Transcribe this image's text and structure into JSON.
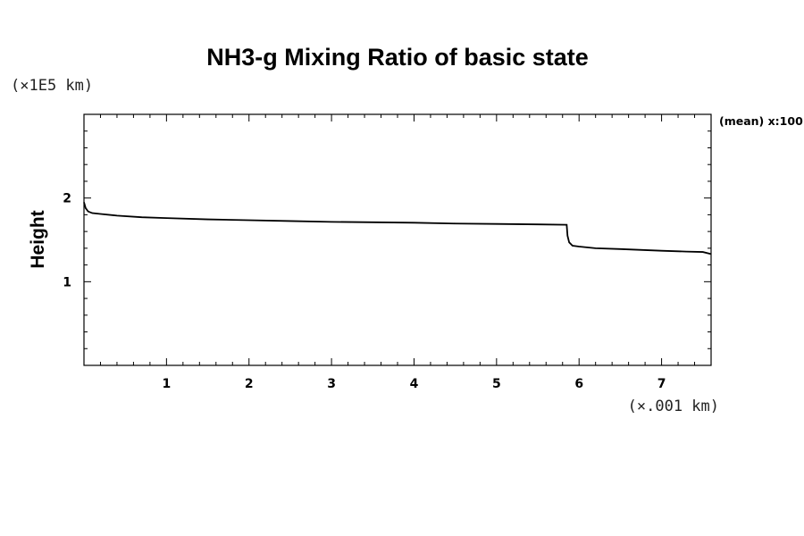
{
  "chart_data": {
    "type": "line",
    "title": "NH3-g Mixing Ratio of basic state",
    "ylabel": "Height",
    "y_unit": "(×1E5 km)",
    "x_unit": "(×.001 km)",
    "annotation": "(mean) x:100",
    "xlim": [
      0,
      7.6
    ],
    "ylim": [
      0,
      3
    ],
    "x_ticks": [
      "1",
      "2",
      "3",
      "4",
      "5",
      "6",
      "7"
    ],
    "y_ticks": [
      "1",
      "2"
    ],
    "grid": false,
    "series": [
      {
        "x": [
          0.0,
          0.02,
          0.05,
          0.1,
          0.2,
          0.4,
          0.7,
          1.0,
          1.5,
          2.0,
          2.5,
          3.0,
          3.5,
          4.0,
          4.5,
          5.0,
          5.5,
          5.85,
          5.86,
          5.88,
          5.92,
          6.0,
          6.2,
          6.5,
          7.0,
          7.3,
          7.5,
          7.6
        ],
        "y": [
          1.95,
          1.88,
          1.84,
          1.82,
          1.81,
          1.79,
          1.77,
          1.76,
          1.745,
          1.735,
          1.725,
          1.715,
          1.71,
          1.705,
          1.695,
          1.69,
          1.685,
          1.68,
          1.55,
          1.47,
          1.43,
          1.42,
          1.4,
          1.39,
          1.37,
          1.36,
          1.355,
          1.33
        ]
      }
    ]
  }
}
